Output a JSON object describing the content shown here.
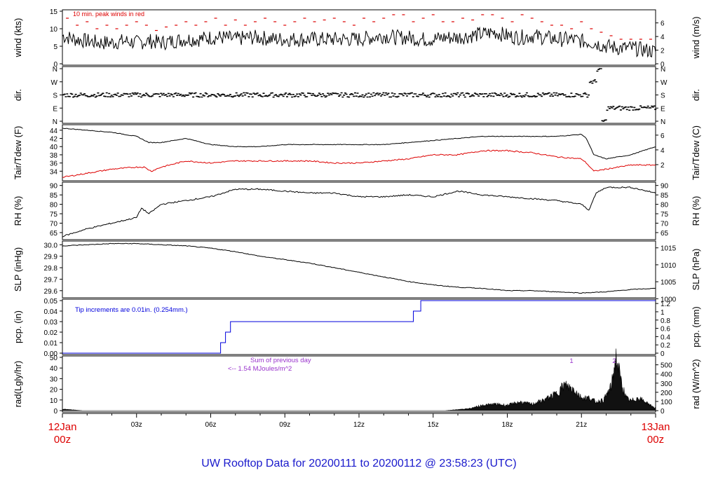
{
  "title": "UW Rooftop Data for 20200111  to  20200112 @ 23:58:23  (UTC)",
  "colors": {
    "title": "#1a1acc",
    "time_labels": "#dd0000",
    "peak_wind": "#dd0000",
    "tdew": "#dd0000",
    "precip": "#0000dd",
    "rad_note": "#9933cc",
    "line": "#000000"
  },
  "time_axis": {
    "start_date": "12Jan",
    "start_time": "00z",
    "end_date": "13Jan",
    "end_time": "00z",
    "ticks": [
      "03z",
      "06z",
      "09z",
      "12z",
      "15z",
      "18z",
      "21z"
    ]
  },
  "chart_data": [
    {
      "id": "wind",
      "type": "line",
      "ylabel_left": "wind (kts)",
      "ylabel_right": "wind (m/s)",
      "ylim": [
        0,
        15
      ],
      "yticks_left": [
        "0",
        "5",
        "10",
        "15"
      ],
      "yticks_right": [
        "0",
        "2",
        "4",
        "6"
      ],
      "annotation": "10 min. peak winds in red",
      "series": [
        {
          "role": "speed",
          "x": [
            0,
            0.5,
            1,
            1.5,
            2,
            2.5,
            3,
            3.5,
            4,
            4.5,
            5,
            5.5,
            6,
            6.5,
            7,
            7.5,
            8,
            8.5,
            9,
            9.5,
            10,
            10.5,
            11,
            11.5,
            12,
            12.5,
            13,
            13.5,
            14,
            14.5,
            15,
            15.5,
            16,
            16.5,
            17,
            17.5,
            18,
            18.5,
            19,
            19.5,
            20,
            20.5,
            21,
            21.5,
            22,
            22.5,
            23,
            23.5,
            24
          ],
          "values": [
            8,
            7,
            6.5,
            6,
            6,
            6.5,
            6,
            6.5,
            6,
            6.5,
            7,
            7,
            7.5,
            7.5,
            7,
            7.5,
            7.5,
            7,
            7,
            7,
            7,
            7,
            7,
            7,
            7,
            7.5,
            8,
            7.5,
            7.5,
            7,
            7,
            7.5,
            7.5,
            8,
            8.5,
            9,
            8,
            7.5,
            8,
            7.5,
            7,
            7,
            6.5,
            6,
            5,
            4.5,
            4.5,
            4,
            3.5
          ]
        },
        {
          "role": "peak",
          "x": [
            0.2,
            0.6,
            1,
            1.4,
            1.8,
            2.2,
            2.6,
            3,
            3.4,
            3.8,
            4.2,
            4.6,
            5,
            5.4,
            5.8,
            6.2,
            6.6,
            7,
            7.4,
            7.8,
            8.2,
            8.6,
            9,
            9.4,
            9.8,
            10.2,
            10.6,
            11,
            11.4,
            11.8,
            12.2,
            12.6,
            13,
            13.4,
            13.8,
            14.2,
            14.6,
            15,
            15.4,
            15.8,
            16.2,
            16.6,
            17,
            17.4,
            17.8,
            18.2,
            18.6,
            19,
            19.4,
            19.8,
            20.2,
            20.6,
            21,
            21.4,
            21.8,
            22.2,
            22.6,
            23,
            23.4,
            23.8
          ],
          "values": [
            13,
            11,
            12,
            10,
            11,
            10,
            11,
            12,
            11,
            9.5,
            10.5,
            11,
            12,
            11,
            12,
            13,
            11,
            12.5,
            11,
            12,
            13,
            12,
            11,
            12,
            13,
            12,
            12.5,
            13,
            12,
            11,
            13,
            12,
            13,
            14,
            14,
            12,
            13,
            14,
            12,
            12,
            13,
            12.5,
            14,
            14,
            13,
            12,
            14,
            13,
            12,
            11,
            11,
            10,
            12,
            10,
            9,
            8,
            7,
            7,
            7,
            7
          ]
        }
      ]
    },
    {
      "id": "dir",
      "type": "scatter",
      "ylabel_left": "dir.",
      "ylabel_right": "dir.",
      "yticks": [
        "N",
        "E",
        "S",
        "W",
        "N"
      ],
      "x": [
        0,
        1,
        2,
        3,
        4,
        5,
        6,
        7,
        8,
        9,
        10,
        11,
        12,
        13,
        14,
        15,
        16,
        17,
        18,
        19,
        20,
        21,
        21.3,
        21.6,
        22,
        23,
        24
      ],
      "values": [
        "S",
        "S",
        "S",
        "S",
        "S",
        "S",
        "S",
        "S",
        "S",
        "S",
        "S",
        "S",
        "S",
        "S",
        "S",
        "S",
        "S",
        "S",
        "S",
        "S",
        "S",
        "S",
        "W",
        "N",
        "E",
        "E",
        "E"
      ]
    },
    {
      "id": "temp",
      "type": "line",
      "ylabel_left": "Tair/Tdew (F)",
      "ylabel_right": "Tair/Tdew (C)",
      "ylim": [
        32,
        45
      ],
      "yticks_left": [
        "34",
        "36",
        "38",
        "40",
        "42",
        "44"
      ],
      "yticks_right": [
        "2",
        "4",
        "6"
      ],
      "series": [
        {
          "role": "Tair",
          "x": [
            0,
            1,
            2,
            3,
            3.5,
            4,
            5,
            6,
            7,
            8,
            9,
            10,
            11,
            12,
            13,
            14,
            15,
            16,
            17,
            18,
            19,
            20,
            21,
            21.2,
            21.5,
            22,
            23,
            24
          ],
          "values": [
            44.5,
            44,
            43.5,
            42.5,
            41,
            41,
            42,
            40.5,
            40,
            40,
            40.5,
            40.5,
            40.5,
            40.5,
            40.5,
            41,
            41.5,
            42,
            42.5,
            42.5,
            42.5,
            42.5,
            43,
            42,
            38,
            37,
            38,
            40
          ]
        },
        {
          "role": "Tdew",
          "x": [
            0,
            1,
            2,
            3,
            3.3,
            3.6,
            4,
            5,
            6,
            7,
            8,
            9,
            10,
            11,
            12,
            13,
            14,
            15,
            16,
            17,
            18,
            19,
            20,
            21,
            21.2,
            21.5,
            22,
            23,
            24
          ],
          "values": [
            32.5,
            33.5,
            34.5,
            35,
            35,
            34,
            35,
            36.5,
            36,
            36.5,
            36.5,
            36.5,
            36.5,
            36,
            36,
            36.5,
            37,
            38,
            38,
            39,
            39,
            38.5,
            37.5,
            37,
            36,
            34,
            34.5,
            35.5,
            35.5
          ]
        }
      ]
    },
    {
      "id": "rh",
      "type": "line",
      "ylabel_left": "RH (%)",
      "ylabel_right": "RH (%)",
      "ylim": [
        62,
        91
      ],
      "yticks_left": [
        "65",
        "70",
        "75",
        "80",
        "85",
        "90"
      ],
      "yticks_right": [
        "65",
        "70",
        "75",
        "80",
        "85",
        "90"
      ],
      "x": [
        0,
        1,
        2,
        3,
        3.2,
        3.5,
        4,
        5,
        6,
        7,
        8,
        9,
        10,
        11,
        12,
        13,
        14,
        15,
        16,
        17,
        18,
        19,
        20,
        21,
        21.3,
        21.6,
        22,
        23,
        24
      ],
      "values": [
        63,
        67,
        70,
        73,
        78,
        75,
        80,
        82,
        84,
        88,
        88,
        87,
        86,
        86,
        84,
        84,
        85,
        84,
        87,
        85,
        84,
        83,
        82,
        80,
        77,
        86,
        89,
        89,
        86
      ]
    },
    {
      "id": "slp",
      "type": "line",
      "ylabel_left": "SLP (inHg)",
      "ylabel_right": "SLP (hPa)",
      "ylim": [
        29.55,
        30.02
      ],
      "yticks_left": [
        "29.6",
        "29.7",
        "29.8",
        "29.9",
        "30.0"
      ],
      "yticks_right": [
        "1000",
        "1005",
        "1010",
        "1015"
      ],
      "x": [
        0,
        1,
        2,
        3,
        4,
        5,
        6,
        7,
        8,
        9,
        10,
        11,
        12,
        13,
        14,
        15,
        16,
        17,
        18,
        19,
        20,
        21,
        22,
        23,
        24
      ],
      "values": [
        29.99,
        30.0,
        30.01,
        30.01,
        30.0,
        29.99,
        29.97,
        29.94,
        29.9,
        29.87,
        29.84,
        29.8,
        29.76,
        29.72,
        29.68,
        29.65,
        29.63,
        29.62,
        29.6,
        29.6,
        29.59,
        29.58,
        29.59,
        29.61,
        29.62
      ]
    },
    {
      "id": "pcp",
      "type": "line",
      "ylabel_left": "pcp. (in)",
      "ylabel_right": "pcp. (mm)",
      "ylim": [
        0,
        0.05
      ],
      "yticks_left": [
        "0.00",
        "0.01",
        "0.02",
        "0.03",
        "0.04",
        "0.05"
      ],
      "yticks_right": [
        "0",
        "0.2",
        "0.4",
        "0.6",
        "0.8",
        "1",
        "1.2"
      ],
      "annotation": "Tip increments are 0.01in. (0.254mm.)",
      "x": [
        0,
        6.4,
        6.4,
        6.6,
        6.6,
        6.8,
        6.8,
        14.2,
        14.2,
        14.5,
        14.5,
        24
      ],
      "values": [
        0,
        0,
        0.01,
        0.01,
        0.02,
        0.02,
        0.03,
        0.03,
        0.04,
        0.04,
        0.05,
        0.05
      ]
    },
    {
      "id": "rad",
      "type": "area",
      "ylabel_left": "rad(Lgly/hr)",
      "ylabel_right": "rad (W/m^2)",
      "ylim": [
        0,
        50
      ],
      "yticks_left": [
        "0",
        "10",
        "20",
        "30",
        "40",
        "50"
      ],
      "yticks_right": [
        "0",
        "100",
        "200",
        "300",
        "400",
        "500"
      ],
      "annotation_line1": "Sum of previous day",
      "annotation_line2": "<-- 1.54 MJoules/m^2",
      "markers": [
        "1",
        "2"
      ],
      "x": [
        0,
        0.8,
        15.5,
        16.5,
        17,
        17.5,
        18,
        18.5,
        19,
        19.5,
        20,
        20.3,
        20.7,
        21,
        21.3,
        21.6,
        21.9,
        22.2,
        22.4,
        22.6,
        22.8,
        23,
        23.3,
        23.6,
        24
      ],
      "values": [
        1.5,
        0,
        0,
        2,
        5,
        6,
        5,
        8,
        6,
        10,
        16,
        24,
        20,
        12,
        12,
        8,
        10,
        22,
        50,
        28,
        12,
        9,
        12,
        8,
        2
      ]
    }
  ]
}
